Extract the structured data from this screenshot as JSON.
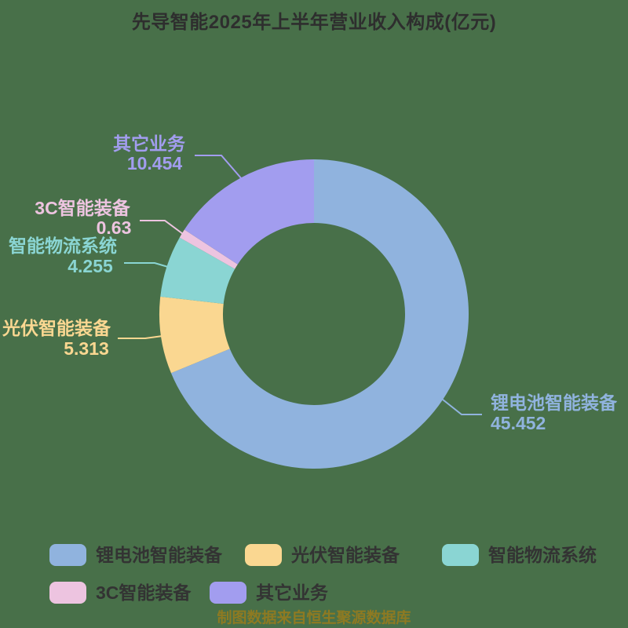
{
  "title": "先导智能2025年上半年营业收入构成(亿元)",
  "footer_note": "制图数据来自恒生聚源数据库",
  "theme": {
    "background": "#487049",
    "title_color": "#2E2E2E",
    "legend_text_color": "#333333",
    "footer_color": "#8E7A22"
  },
  "chart_data": {
    "type": "pie",
    "subtype": "donut",
    "title": "先导智能2025年上半年营业收入构成(亿元)",
    "unit": "亿元",
    "categories": [
      "锂电池智能装备",
      "光伏智能装备",
      "智能物流系统",
      "3C智能装备",
      "其它业务"
    ],
    "values": [
      45.452,
      5.313,
      4.255,
      0.63,
      10.454
    ],
    "colors": [
      "#90B3DE",
      "#FAD791",
      "#8AD5D3",
      "#EDC4E0",
      "#A29DEF"
    ],
    "start_angle": "12-oclock",
    "direction": "clockwise",
    "inner_radius_ratio": 0.59,
    "legend_position": "bottom",
    "labels_show_values": true
  }
}
